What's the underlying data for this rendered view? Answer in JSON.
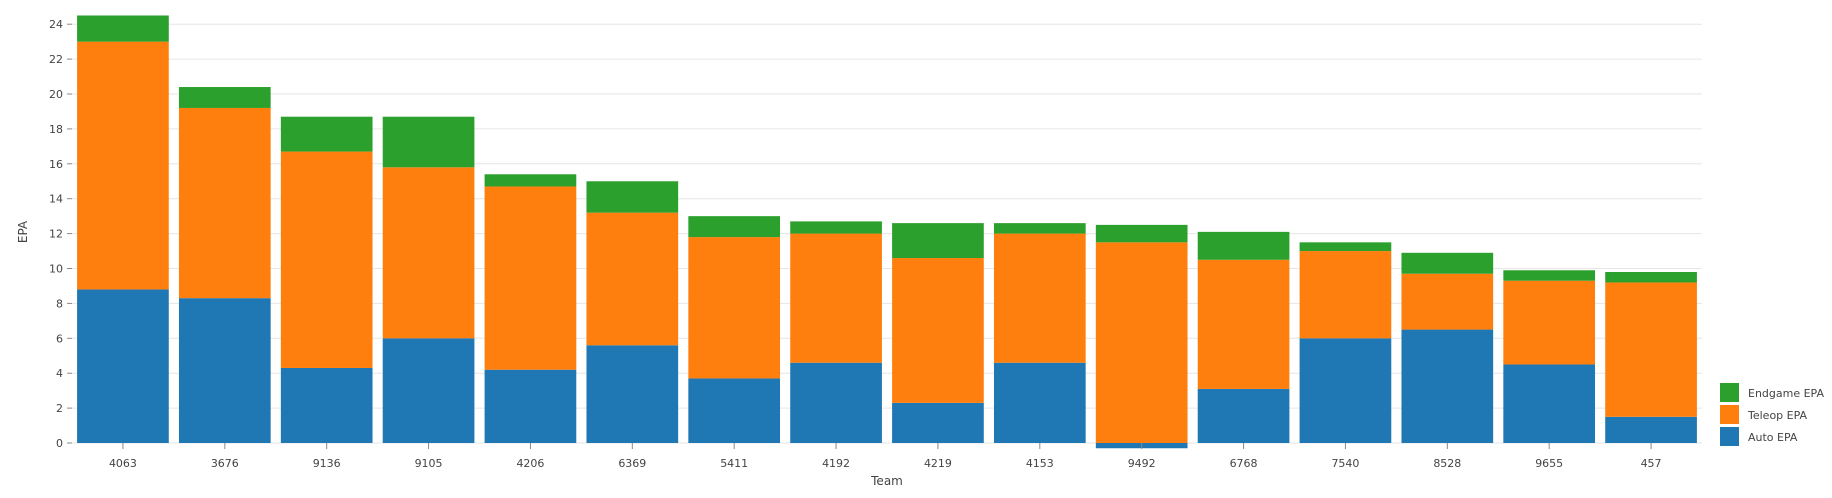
{
  "chart_data": {
    "type": "bar",
    "stacked": true,
    "categories": [
      "4063",
      "3676",
      "9136",
      "9105",
      "4206",
      "6369",
      "5411",
      "4192",
      "4219",
      "4153",
      "9492",
      "6768",
      "7540",
      "8528",
      "9655",
      "457"
    ],
    "series": [
      {
        "name": "Auto EPA",
        "color": "#1f77b4",
        "values": [
          8.8,
          8.3,
          4.3,
          6.0,
          4.2,
          5.6,
          3.7,
          4.6,
          2.3,
          4.6,
          -0.3,
          3.1,
          6.0,
          6.5,
          4.5,
          1.5
        ]
      },
      {
        "name": "Teleop EPA",
        "color": "#ff7f0e",
        "values": [
          14.2,
          10.9,
          12.4,
          9.8,
          10.5,
          7.6,
          8.1,
          7.4,
          8.3,
          7.4,
          11.5,
          7.4,
          5.0,
          3.2,
          4.8,
          7.7
        ]
      },
      {
        "name": "Endgame EPA",
        "color": "#2ca02c",
        "values": [
          1.5,
          1.2,
          2.0,
          2.9,
          0.7,
          1.8,
          1.2,
          0.7,
          2.0,
          0.6,
          1.0,
          1.6,
          0.5,
          1.2,
          0.6,
          0.6
        ]
      }
    ],
    "xlabel": "Team",
    "ylabel": "EPA",
    "ylim": [
      -0.4,
      25
    ],
    "yticks": [
      "0",
      "2",
      "4",
      "6",
      "8",
      "10",
      "12",
      "14",
      "16",
      "18",
      "20",
      "22",
      "24"
    ],
    "grid": true,
    "legend_position": "bottom-right",
    "legend_order": [
      "Endgame EPA",
      "Teleop EPA",
      "Auto EPA"
    ]
  }
}
